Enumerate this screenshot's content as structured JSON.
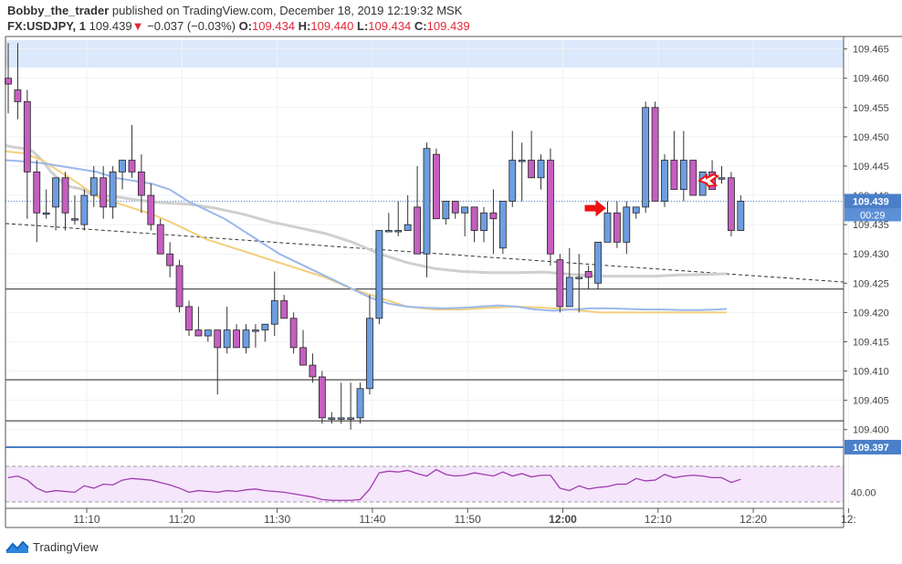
{
  "header": {
    "author": "Bobby_the_trader",
    "published": "published on TradingView.com, December 18, 2019 12:19:32 MSK",
    "symbol": "FX:USDJPY, 1",
    "last": "109.439",
    "change_arrow": "▼",
    "change": "−0.037 (−0.03%)",
    "o_label": "O:",
    "o_value": "109.434",
    "h_label": "H:",
    "h_value": "109.440",
    "l_label": "L:",
    "l_value": "109.434",
    "c_label": "C:",
    "c_value": "109.439"
  },
  "footer": {
    "brand": "TradingView",
    "logo_icon": "tradingview-logo-icon"
  },
  "colors": {
    "bull": "#6e9ee0",
    "bear": "#c55fc0",
    "wick": "#333333",
    "ma_gray": "#cfcfcf",
    "ma_yellow": "#f2cf7c",
    "ma_blue": "#9bb8ea",
    "band": "#dce8fb",
    "rsi_line": "#a03bb0",
    "rsi_bg": "#f5e6fb",
    "price_box": "#4a7fc9",
    "annotation_red": "#ee1111"
  },
  "chart_data": {
    "type": "candlestick",
    "x_labels": [
      "11:10",
      "11:20",
      "11:30",
      "11:40",
      "11:50",
      "12:00",
      "12:10",
      "12:20",
      "12:"
    ],
    "y_ticks": [
      "109.465",
      "109.460",
      "109.455",
      "109.450",
      "109.445",
      "109.440",
      "109.435",
      "109.430",
      "109.425",
      "109.420",
      "109.415",
      "109.410",
      "109.405",
      "109.400"
    ],
    "ylim": [
      109.3945,
      109.4665
    ],
    "candles": [
      [
        109.46,
        109.466,
        109.454,
        109.459
      ],
      [
        109.458,
        109.466,
        109.453,
        109.456
      ],
      [
        109.456,
        109.458,
        109.436,
        109.444
      ],
      [
        109.444,
        109.446,
        109.432,
        109.437
      ],
      [
        109.437,
        109.441,
        109.436,
        109.437
      ],
      [
        109.438,
        109.443,
        109.434,
        109.443
      ],
      [
        109.443,
        109.444,
        109.434,
        109.437
      ],
      [
        109.436,
        109.44,
        109.435,
        109.436
      ],
      [
        109.435,
        109.441,
        109.434,
        109.44
      ],
      [
        109.44,
        109.445,
        109.438,
        109.443
      ],
      [
        109.443,
        109.445,
        109.436,
        109.438
      ],
      [
        109.438,
        109.445,
        109.436,
        109.444
      ],
      [
        109.444,
        109.446,
        109.441,
        109.446
      ],
      [
        109.446,
        109.452,
        109.443,
        109.444
      ],
      [
        109.444,
        109.447,
        109.437,
        109.44
      ],
      [
        109.44,
        109.442,
        109.434,
        109.435
      ],
      [
        109.435,
        109.436,
        109.43,
        109.43
      ],
      [
        109.43,
        109.432,
        109.426,
        109.428
      ],
      [
        109.428,
        109.429,
        109.42,
        109.421
      ],
      [
        109.421,
        109.422,
        109.416,
        109.417
      ],
      [
        109.417,
        109.421,
        109.416,
        109.416
      ],
      [
        109.416,
        109.417,
        109.415,
        109.417
      ],
      [
        109.417,
        109.417,
        109.406,
        109.414
      ],
      [
        109.414,
        109.421,
        109.413,
        109.417
      ],
      [
        109.417,
        109.418,
        109.414,
        109.414
      ],
      [
        109.414,
        109.418,
        109.413,
        109.417
      ],
      [
        109.417,
        109.418,
        109.414,
        109.417
      ],
      [
        109.417,
        109.418,
        109.415,
        109.418
      ],
      [
        109.418,
        109.427,
        109.416,
        109.422
      ],
      [
        109.422,
        109.423,
        109.419,
        109.419
      ],
      [
        109.419,
        109.42,
        109.413,
        109.414
      ],
      [
        109.414,
        109.417,
        109.411,
        109.411
      ],
      [
        109.411,
        109.413,
        109.408,
        109.409
      ],
      [
        109.409,
        109.41,
        109.401,
        109.402
      ],
      [
        109.402,
        109.403,
        109.401,
        109.402
      ],
      [
        109.402,
        109.408,
        109.401,
        109.402
      ],
      [
        109.402,
        109.408,
        109.4,
        109.402
      ],
      [
        109.402,
        109.408,
        109.401,
        109.407
      ],
      [
        109.407,
        109.423,
        109.406,
        109.419
      ],
      [
        109.419,
        109.434,
        109.418,
        109.434
      ],
      [
        109.434,
        109.437,
        109.434,
        109.434
      ],
      [
        109.434,
        109.439,
        109.433,
        109.434
      ],
      [
        109.434,
        109.44,
        109.434,
        109.435
      ],
      [
        109.438,
        109.445,
        109.43,
        109.43
      ],
      [
        109.43,
        109.449,
        109.426,
        109.448
      ],
      [
        109.447,
        109.448,
        109.436,
        109.436
      ],
      [
        109.436,
        109.439,
        109.435,
        109.439
      ],
      [
        109.439,
        109.439,
        109.436,
        109.437
      ],
      [
        109.437,
        109.438,
        109.433,
        109.438
      ],
      [
        109.438,
        109.438,
        109.432,
        109.434
      ],
      [
        109.434,
        109.438,
        109.432,
        109.437
      ],
      [
        109.437,
        109.441,
        109.43,
        109.436
      ],
      [
        109.431,
        109.439,
        109.43,
        109.439
      ],
      [
        109.439,
        109.451,
        109.438,
        109.446
      ],
      [
        109.446,
        109.449,
        109.439,
        109.446
      ],
      [
        109.446,
        109.451,
        109.443,
        109.443
      ],
      [
        109.443,
        109.447,
        109.441,
        109.446
      ],
      [
        109.446,
        109.448,
        109.428,
        109.43
      ],
      [
        109.429,
        109.43,
        109.42,
        109.421
      ],
      [
        109.421,
        109.431,
        109.421,
        109.426
      ],
      [
        109.426,
        109.43,
        109.42,
        109.426
      ],
      [
        109.427,
        109.428,
        109.424,
        109.426
      ],
      [
        109.425,
        109.432,
        109.424,
        109.432
      ],
      [
        109.432,
        109.439,
        109.432,
        109.437
      ],
      [
        109.437,
        109.439,
        109.431,
        109.432
      ],
      [
        109.432,
        109.439,
        109.43,
        109.438
      ],
      [
        109.437,
        109.438,
        109.436,
        109.438
      ],
      [
        109.438,
        109.456,
        109.437,
        109.455
      ],
      [
        109.455,
        109.456,
        109.439,
        109.439
      ],
      [
        109.439,
        109.447,
        109.438,
        109.446
      ],
      [
        109.446,
        109.451,
        109.441,
        109.441
      ],
      [
        109.441,
        109.451,
        109.439,
        109.446
      ],
      [
        109.446,
        109.446,
        109.44,
        109.44
      ],
      [
        109.44,
        109.444,
        109.44,
        109.444
      ],
      [
        109.444,
        109.446,
        109.441,
        109.441
      ],
      [
        109.443,
        109.445,
        109.442,
        109.443
      ],
      [
        109.443,
        109.444,
        109.433,
        109.434
      ],
      [
        109.434,
        109.44,
        109.434,
        109.439
      ]
    ],
    "ma_gray": [
      [
        0,
        109.4485
      ],
      [
        10,
        109.4482
      ],
      [
        20,
        109.448
      ],
      [
        30,
        109.4475
      ],
      [
        40,
        109.446
      ],
      [
        50,
        109.444
      ],
      [
        60,
        109.4425
      ],
      [
        70,
        109.4415
      ],
      [
        80,
        109.4412
      ],
      [
        85,
        109.441
      ],
      [
        90,
        109.4405
      ],
      [
        100,
        109.44
      ],
      [
        120,
        109.4398
      ],
      [
        140,
        109.4393
      ],
      [
        165,
        109.4388
      ],
      [
        200,
        109.4385
      ],
      [
        230,
        109.4378
      ],
      [
        260,
        109.4368
      ],
      [
        290,
        109.4355
      ],
      [
        320,
        109.4345
      ],
      [
        350,
        109.4335
      ],
      [
        380,
        109.432
      ],
      [
        410,
        109.43
      ],
      [
        440,
        109.4285
      ],
      [
        470,
        109.4275
      ],
      [
        500,
        109.427
      ],
      [
        530,
        109.4268
      ],
      [
        560,
        109.4268
      ],
      [
        590,
        109.4269
      ],
      [
        620,
        109.4265
      ],
      [
        650,
        109.4262
      ],
      [
        680,
        109.4262
      ],
      [
        710,
        109.4262
      ],
      [
        740,
        109.4264
      ],
      [
        770,
        109.4265
      ],
      [
        790,
        109.4266
      ]
    ],
    "ma_yellow": [
      [
        0,
        109.4475
      ],
      [
        20,
        109.4472
      ],
      [
        40,
        109.446
      ],
      [
        60,
        109.444
      ],
      [
        80,
        109.442
      ],
      [
        100,
        109.4398
      ],
      [
        120,
        109.4388
      ],
      [
        140,
        109.4378
      ],
      [
        160,
        109.4368
      ],
      [
        180,
        109.4355
      ],
      [
        200,
        109.434
      ],
      [
        220,
        109.4325
      ],
      [
        240,
        109.4315
      ],
      [
        260,
        109.4305
      ],
      [
        290,
        109.429
      ],
      [
        320,
        109.4275
      ],
      [
        350,
        109.426
      ],
      [
        380,
        109.424
      ],
      [
        410,
        109.4225
      ],
      [
        440,
        109.421
      ],
      [
        470,
        109.4205
      ],
      [
        500,
        109.4205
      ],
      [
        530,
        109.4208
      ],
      [
        560,
        109.421
      ],
      [
        590,
        109.4208
      ],
      [
        620,
        109.4205
      ],
      [
        650,
        109.42
      ],
      [
        680,
        109.42
      ],
      [
        710,
        109.42
      ],
      [
        740,
        109.42
      ],
      [
        770,
        109.42
      ],
      [
        790,
        109.42
      ]
    ],
    "ma_blue": [
      [
        0,
        109.446
      ],
      [
        20,
        109.4458
      ],
      [
        40,
        109.4455
      ],
      [
        60,
        109.445
      ],
      [
        80,
        109.4445
      ],
      [
        100,
        109.444
      ],
      [
        120,
        109.443
      ],
      [
        140,
        109.4425
      ],
      [
        160,
        109.442
      ],
      [
        180,
        109.441
      ],
      [
        200,
        109.439
      ],
      [
        220,
        109.4375
      ],
      [
        240,
        109.436
      ],
      [
        260,
        109.434
      ],
      [
        280,
        109.432
      ],
      [
        300,
        109.43
      ],
      [
        320,
        109.4285
      ],
      [
        340,
        109.427
      ],
      [
        360,
        109.4255
      ],
      [
        380,
        109.424
      ],
      [
        400,
        109.4225
      ],
      [
        420,
        109.4215
      ],
      [
        440,
        109.421
      ],
      [
        460,
        109.4208
      ],
      [
        480,
        109.4207
      ],
      [
        500,
        109.4208
      ],
      [
        520,
        109.421
      ],
      [
        540,
        109.4212
      ],
      [
        560,
        109.421
      ],
      [
        580,
        109.4205
      ],
      [
        600,
        109.4203
      ],
      [
        620,
        109.4205
      ],
      [
        640,
        109.4207
      ],
      [
        660,
        109.4207
      ],
      [
        680,
        109.4206
      ],
      [
        700,
        109.4205
      ],
      [
        720,
        109.4205
      ],
      [
        740,
        109.4204
      ],
      [
        760,
        109.4204
      ],
      [
        780,
        109.4205
      ],
      [
        790,
        109.4206
      ]
    ],
    "price_labels": {
      "last": "109.439",
      "countdown": "00:29",
      "support": "109.397"
    },
    "support_level": 109.397,
    "horizontal_levels": [
      109.424,
      109.4085,
      109.4015
    ],
    "highlight_band": [
      109.464,
      109.4665
    ],
    "trendline": [
      [
        0,
        109.4352
      ],
      [
        100,
        109.4252
      ]
    ],
    "rsi": {
      "label": "40.00",
      "values": [
        58,
        60,
        55,
        45,
        40,
        42,
        41,
        40,
        48,
        45,
        50,
        49,
        55,
        57,
        56,
        55,
        52,
        49,
        45,
        40,
        42,
        41,
        40,
        42,
        41,
        43,
        44,
        42,
        41,
        40,
        38,
        36,
        34,
        31,
        30,
        30,
        30,
        31,
        44,
        64,
        66,
        65,
        67,
        63,
        60,
        68,
        62,
        60,
        61,
        64,
        62,
        60,
        65,
        60,
        63,
        59,
        61,
        61,
        45,
        42,
        48,
        44,
        46,
        47,
        50,
        50,
        57,
        54,
        55,
        62,
        58,
        60,
        61,
        60,
        58,
        58,
        52,
        56
      ]
    }
  }
}
